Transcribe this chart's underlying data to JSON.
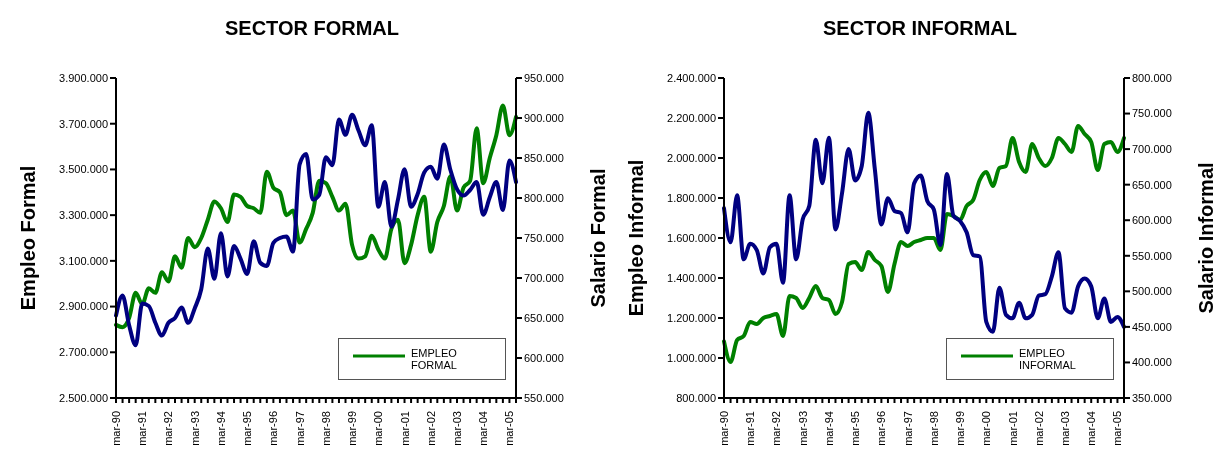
{
  "chart_data": [
    {
      "type": "line",
      "title": "SECTOR FORMAL",
      "ylabel": "Empleo Formal",
      "y2label": "Salario Formal",
      "categories": [
        "mar-90",
        null,
        null,
        null,
        "mar-91",
        null,
        null,
        null,
        "mar-92",
        null,
        null,
        null,
        "mar-93",
        null,
        null,
        null,
        "mar-94",
        null,
        null,
        null,
        "mar-95",
        null,
        null,
        null,
        "mar-96",
        null,
        null,
        null,
        "mar-97",
        null,
        null,
        null,
        "mar-98",
        null,
        null,
        null,
        "mar-99",
        null,
        null,
        null,
        "mar-00",
        null,
        null,
        null,
        "mar-01",
        null,
        null,
        null,
        "mar-02",
        null,
        null,
        null,
        "mar-03",
        null,
        null,
        null,
        "mar-04",
        null,
        null,
        null,
        "mar-05",
        null
      ],
      "series": [
        {
          "name": "EMPLEO FORMAL",
          "color": "#008000",
          "values": [
            2820000,
            2810000,
            2850000,
            2960000,
            2910000,
            2980000,
            2960000,
            3050000,
            3010000,
            3120000,
            3070000,
            3200000,
            3160000,
            3200000,
            3280000,
            3360000,
            3330000,
            3270000,
            3390000,
            3380000,
            3340000,
            3330000,
            3310000,
            3490000,
            3420000,
            3400000,
            3300000,
            3320000,
            3180000,
            3240000,
            3310000,
            3450000,
            3440000,
            3380000,
            3320000,
            3350000,
            3170000,
            3110000,
            3120000,
            3210000,
            3150000,
            3110000,
            3240000,
            3280000,
            3090000,
            3170000,
            3300000,
            3380000,
            3140000,
            3270000,
            3340000,
            3470000,
            3320000,
            3420000,
            3450000,
            3680000,
            3440000,
            3550000,
            3650000,
            3780000,
            3650000,
            3730000
          ]
        },
        {
          "color": "#000080",
          "axis": "y2",
          "values": [
            653000,
            678000,
            641000,
            616000,
            668000,
            665000,
            644000,
            628000,
            644000,
            650000,
            663000,
            644000,
            662000,
            686000,
            737000,
            699000,
            756000,
            702000,
            740000,
            724000,
            705000,
            746000,
            719000,
            715000,
            744000,
            750000,
            752000,
            733000,
            842000,
            855000,
            798000,
            804000,
            851000,
            841000,
            898000,
            879000,
            904000,
            884000,
            866000,
            891000,
            789000,
            820000,
            764000,
            798000,
            836000,
            789000,
            805000,
            832000,
            839000,
            824000,
            867000,
            835000,
            811000,
            803000,
            810000,
            820000,
            779000,
            801000,
            820000,
            785000,
            847000,
            820000
          ]
        }
      ],
      "ylim": [
        2500000,
        3900000
      ],
      "yticks": [
        {
          "value": 2500000,
          "label": "2.500.000"
        },
        {
          "value": 2700000,
          "label": "2.700.000"
        },
        {
          "value": 2900000,
          "label": "2.900.000"
        },
        {
          "value": 3100000,
          "label": "3.100.000"
        },
        {
          "value": 3300000,
          "label": "3.300.000"
        },
        {
          "value": 3500000,
          "label": "3.500.000"
        },
        {
          "value": 3700000,
          "label": "3.700.000"
        },
        {
          "value": 3900000,
          "label": "3.900.000"
        }
      ],
      "y2lim": [
        550000,
        950000
      ],
      "y2ticks": [
        {
          "value": 550000,
          "label": "550.000"
        },
        {
          "value": 600000,
          "label": "600.000"
        },
        {
          "value": 650000,
          "label": "650.000"
        },
        {
          "value": 700000,
          "label": "700.000"
        },
        {
          "value": 750000,
          "label": "750.000"
        },
        {
          "value": 800000,
          "label": "800.000"
        },
        {
          "value": 850000,
          "label": "850.000"
        },
        {
          "value": 900000,
          "label": "900.000"
        },
        {
          "value": 950000,
          "label": "950.000"
        }
      ],
      "grid": false,
      "legend": "bottom right",
      "marker": "none",
      "line_style": "solid"
    },
    {
      "type": "line",
      "title": "SECTOR INFORMAL",
      "ylabel": "Empleo Informal",
      "y2label": "Salario Informal",
      "categories": [
        "mar-90",
        null,
        null,
        null,
        "mar-91",
        null,
        null,
        null,
        "mar-92",
        null,
        null,
        null,
        "mar-93",
        null,
        null,
        null,
        "mar-94",
        null,
        null,
        null,
        "mar-95",
        null,
        null,
        null,
        "mar-96",
        null,
        null,
        null,
        "mar-97",
        null,
        null,
        null,
        "mar-98",
        null,
        null,
        null,
        "mar-99",
        null,
        null,
        null,
        "mar-00",
        null,
        null,
        null,
        "mar-01",
        null,
        null,
        null,
        "mar-02",
        null,
        null,
        null,
        "mar-03",
        null,
        null,
        null,
        "mar-04",
        null,
        null,
        null,
        "mar-05",
        null
      ],
      "series": [
        {
          "name": "EMPLEO INFORMAL",
          "color": "#008000",
          "values": [
            1083000,
            980000,
            1090000,
            1110000,
            1180000,
            1170000,
            1200000,
            1210000,
            1220000,
            1110000,
            1310000,
            1300000,
            1250000,
            1300000,
            1360000,
            1300000,
            1290000,
            1220000,
            1280000,
            1470000,
            1480000,
            1440000,
            1530000,
            1490000,
            1460000,
            1330000,
            1470000,
            1580000,
            1560000,
            1580000,
            1590000,
            1600000,
            1600000,
            1540000,
            1720000,
            1710000,
            1690000,
            1760000,
            1790000,
            1890000,
            1930000,
            1860000,
            1950000,
            1960000,
            2100000,
            1980000,
            1930000,
            2070000,
            2000000,
            1960000,
            2000000,
            2100000,
            2070000,
            2030000,
            2160000,
            2120000,
            2080000,
            1940000,
            2070000,
            2080000,
            2030000,
            2100000
          ]
        },
        {
          "color": "#000080",
          "axis": "y2",
          "values": [
            617000,
            569000,
            635000,
            545000,
            567000,
            558000,
            525000,
            562000,
            567000,
            512000,
            635000,
            545000,
            601000,
            620000,
            713000,
            652000,
            716000,
            587000,
            638000,
            700000,
            656000,
            676000,
            751000,
            672000,
            594000,
            631000,
            613000,
            610000,
            583000,
            652000,
            663000,
            627000,
            615000,
            565000,
            665000,
            606000,
            599000,
            583000,
            551000,
            549000,
            457000,
            443000,
            505000,
            467000,
            462000,
            484000,
            462000,
            467000,
            494000,
            496000,
            521000,
            555000,
            476000,
            470000,
            507000,
            518000,
            507000,
            462000,
            490000,
            457000,
            464000,
            450000
          ]
        }
      ],
      "ylim": [
        800000,
        2400000
      ],
      "yticks": [
        {
          "value": 800000,
          "label": "800.000"
        },
        {
          "value": 1000000,
          "label": "1.000.000"
        },
        {
          "value": 1200000,
          "label": "1.200.000"
        },
        {
          "value": 1400000,
          "label": "1.400.000"
        },
        {
          "value": 1600000,
          "label": "1.600.000"
        },
        {
          "value": 1800000,
          "label": "1.800.000"
        },
        {
          "value": 2000000,
          "label": "2.000.000"
        },
        {
          "value": 2200000,
          "label": "2.200.000"
        },
        {
          "value": 2400000,
          "label": "2.400.000"
        }
      ],
      "y2lim": [
        350000,
        800000
      ],
      "y2ticks": [
        {
          "value": 350000,
          "label": "350.000"
        },
        {
          "value": 400000,
          "label": "400.000"
        },
        {
          "value": 450000,
          "label": "450.000"
        },
        {
          "value": 500000,
          "label": "500.000"
        },
        {
          "value": 550000,
          "label": "550.000"
        },
        {
          "value": 600000,
          "label": "600.000"
        },
        {
          "value": 650000,
          "label": "650.000"
        },
        {
          "value": 700000,
          "label": "700.000"
        },
        {
          "value": 750000,
          "label": "750.000"
        },
        {
          "value": 800000,
          "label": "800.000"
        }
      ],
      "grid": false,
      "legend": "bottom right",
      "marker": "none",
      "line_style": "solid"
    }
  ]
}
